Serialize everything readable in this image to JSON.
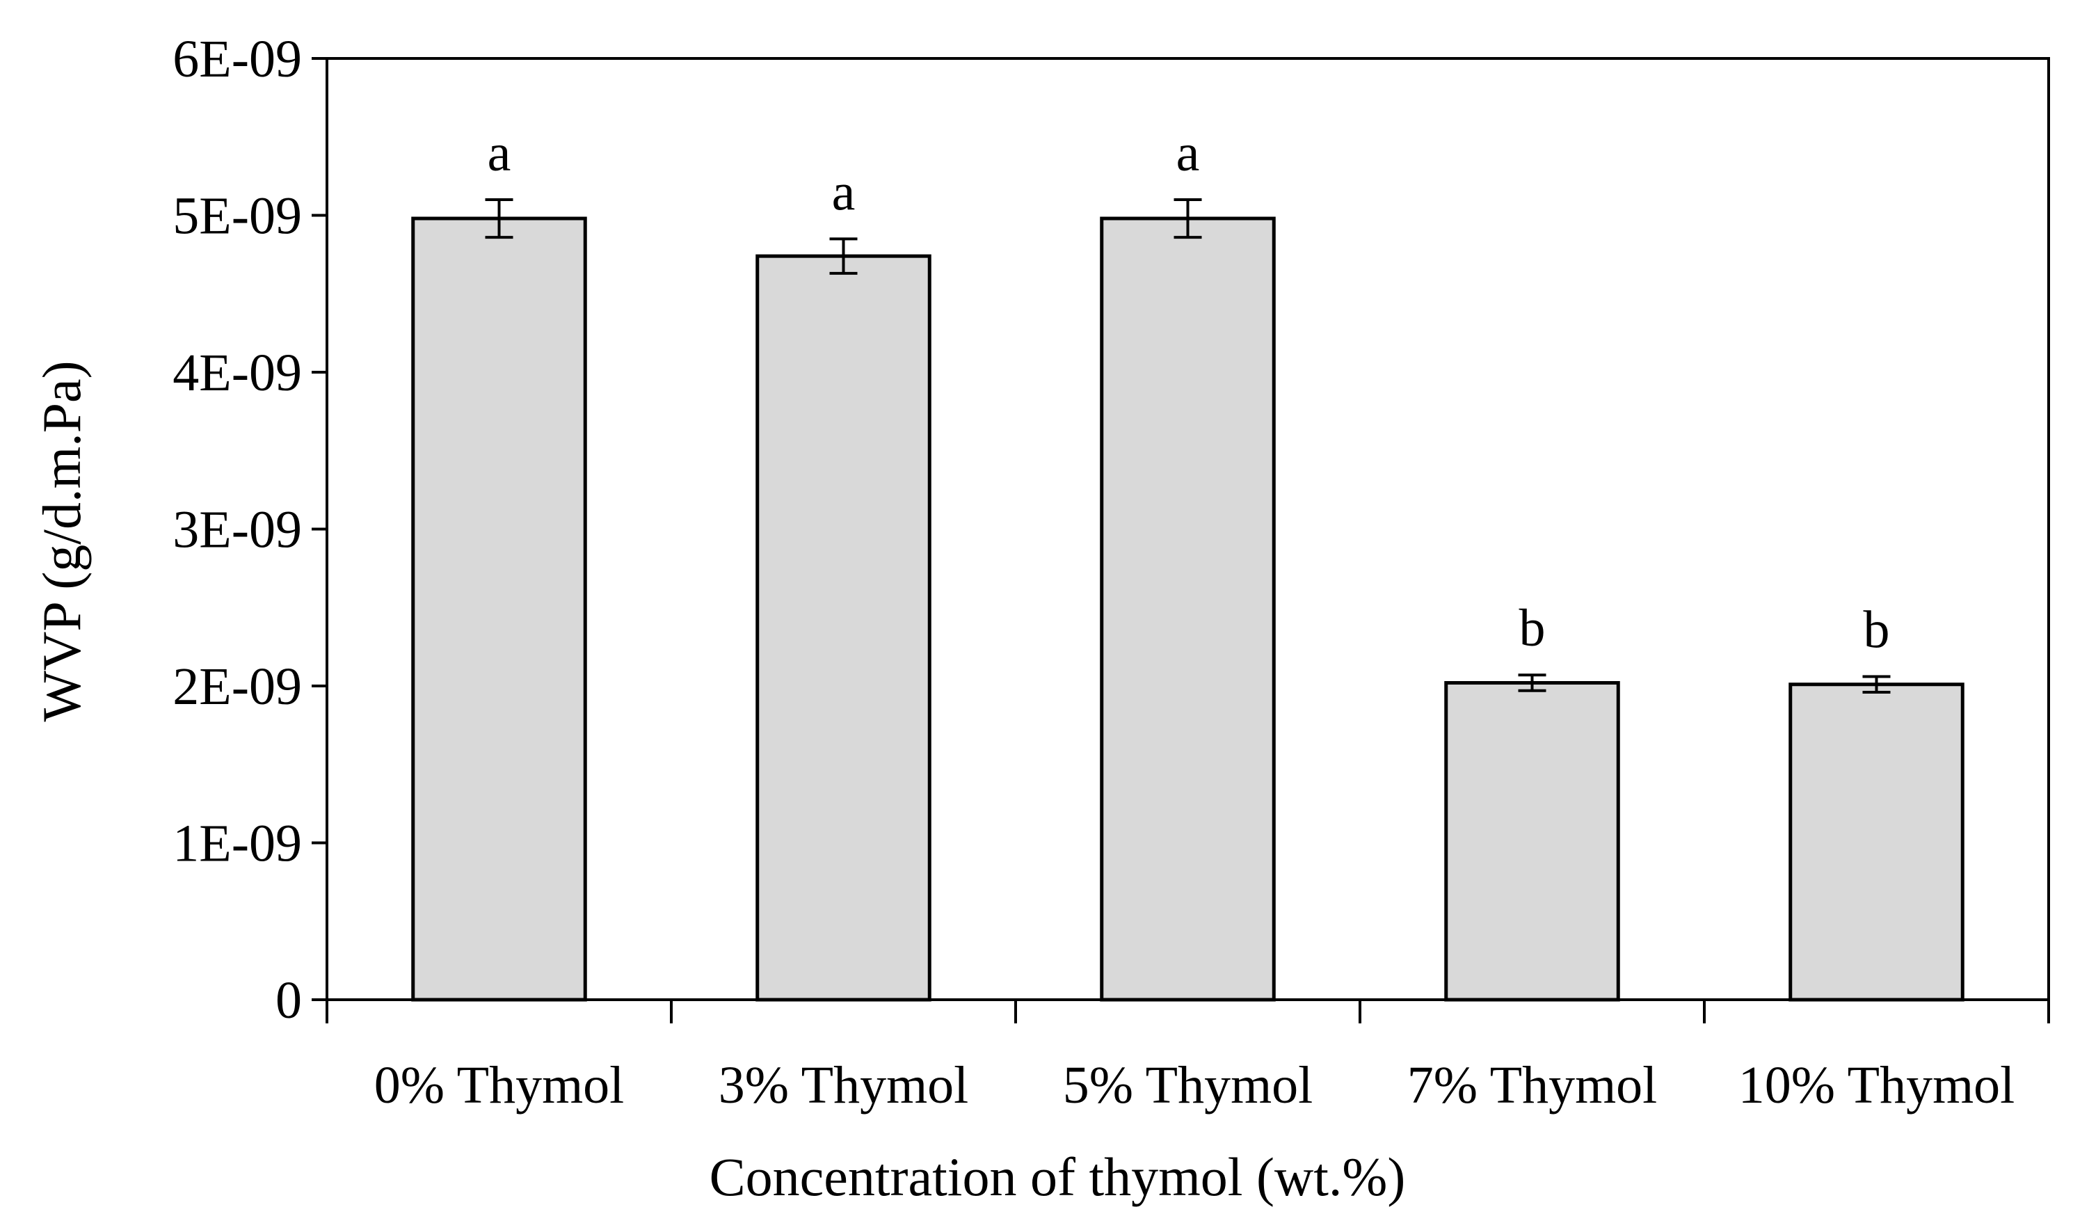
{
  "chart_data": {
    "type": "bar",
    "title": "",
    "xlabel": "Concentration of thymol (wt.%)",
    "ylabel": "WVP (g/d.m.Pa)",
    "categories": [
      "0% Thymol",
      "3% Thymol",
      "5% Thymol",
      "7% Thymol",
      "10% Thymol"
    ],
    "values": [
      4.98e-09,
      4.74e-09,
      4.98e-09,
      2.02e-09,
      2.01e-09
    ],
    "errors": [
      1.2e-10,
      1.1e-10,
      1.2e-10,
      5e-11,
      5e-11
    ],
    "significance_letters": [
      "a",
      "a",
      "a",
      "b",
      "b"
    ],
    "ylim": [
      0,
      6e-09
    ],
    "yticks": [
      0,
      1e-09,
      2e-09,
      3e-09,
      4e-09,
      5e-09,
      6e-09
    ],
    "ytick_labels": [
      "0",
      "1E-09",
      "2E-09",
      "3E-09",
      "4E-09",
      "5E-09",
      "6E-09"
    ],
    "grid": false,
    "legend": "none",
    "colors": {
      "bar_fill": "#d9d9d9",
      "bar_edge": "#000000"
    }
  }
}
